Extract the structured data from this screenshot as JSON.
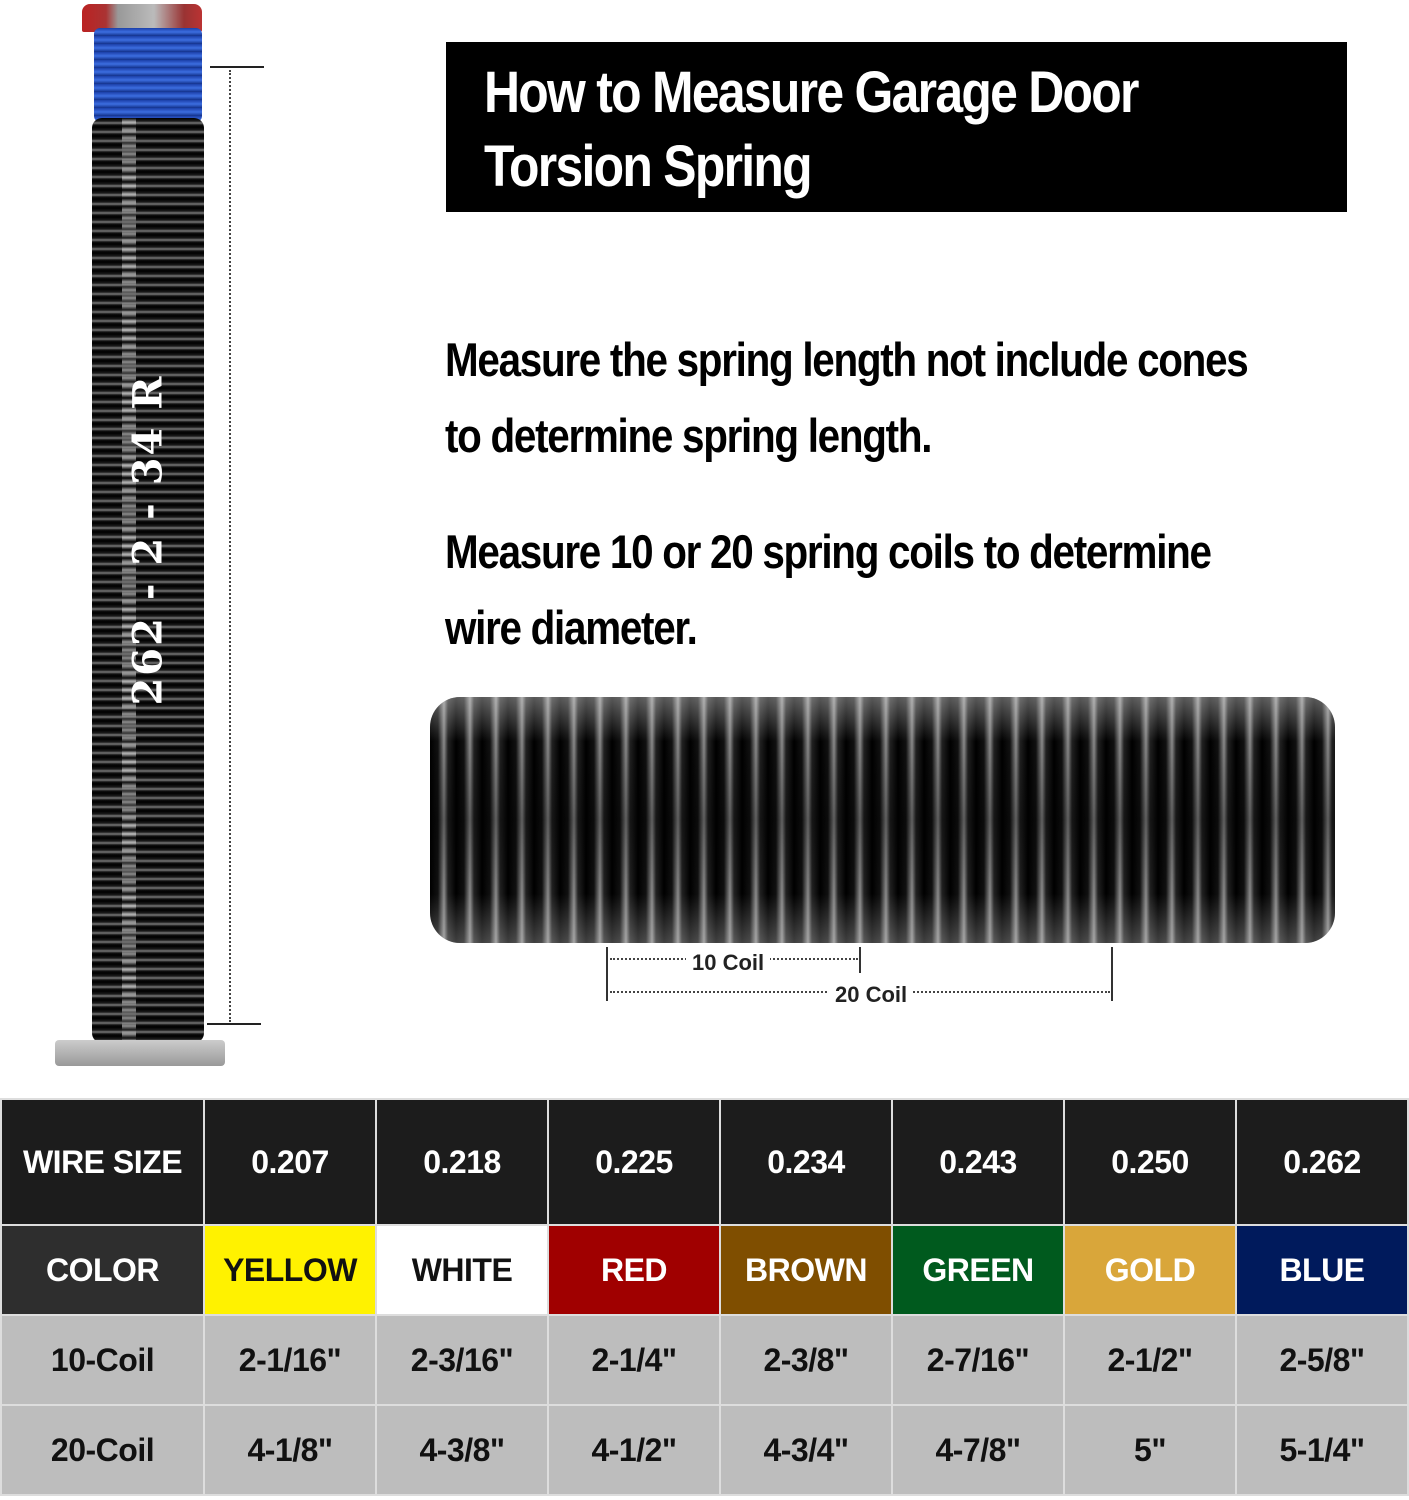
{
  "title": "How to Measure Garage Door Torsion Spring",
  "title_lines": [
    "How to Measure Garage Door",
    "Torsion Spring"
  ],
  "spring_marking": "262 - 2 - 34 R",
  "instructions": {
    "length": [
      "Measure the spring length not include cones",
      "to determine spring length."
    ],
    "wire": [
      "Measure 10 or 20 spring coils to determine",
      "wire diameter."
    ]
  },
  "coil_labels": {
    "ten": "10 Coil",
    "twenty": "20 Coil"
  },
  "table": {
    "headers": {
      "wire_size": "WIRE SIZE",
      "color": "COLOR",
      "ten_coil": "10-Coil",
      "twenty_coil": "20-Coil"
    },
    "columns": [
      {
        "wire": "0.207",
        "color": "YELLOW",
        "bg": "#FFF200",
        "fg": "#111111",
        "ten": "2-1/16\"",
        "twenty": "4-1/8\""
      },
      {
        "wire": "0.218",
        "color": "WHITE",
        "bg": "#FFFFFF",
        "fg": "#111111",
        "ten": "2-3/16\"",
        "twenty": "4-3/8\""
      },
      {
        "wire": "0.225",
        "color": "RED",
        "bg": "#A00000",
        "fg": "#FFFFFF",
        "ten": "2-1/4\"",
        "twenty": "4-1/2\""
      },
      {
        "wire": "0.234",
        "color": "BROWN",
        "bg": "#7F4E00",
        "fg": "#FFFFFF",
        "ten": "2-3/8\"",
        "twenty": "4-3/4\""
      },
      {
        "wire": "0.243",
        "color": "GREEN",
        "bg": "#005A1E",
        "fg": "#FFFFFF",
        "ten": "2-7/16\"",
        "twenty": "4-7/8\""
      },
      {
        "wire": "0.250",
        "color": "GOLD",
        "bg": "#D9A63A",
        "fg": "#FFFFFF",
        "ten": "2-1/2\"",
        "twenty": "5\""
      },
      {
        "wire": "0.262",
        "color": "BLUE",
        "bg": "#001A5C",
        "fg": "#FFFFFF",
        "ten": "2-5/8\"",
        "twenty": "5-1/4\""
      }
    ]
  }
}
